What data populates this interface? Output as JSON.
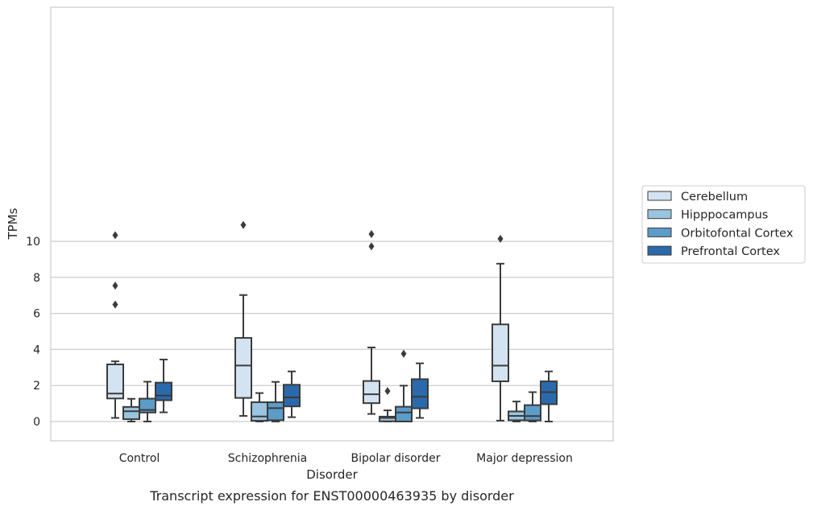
{
  "chart_data": {
    "type": "box",
    "title": "",
    "caption": "Transcript expression for ENST00000463935 by disorder",
    "xlabel": "Disorder",
    "ylabel": "TPMs",
    "ylim": [
      -0.5,
      11.5
    ],
    "yticks": [
      0,
      2,
      4,
      6,
      8,
      10
    ],
    "grid": "horizontal",
    "legend_position": "right",
    "categories": [
      "Control",
      "Schizophrenia",
      "Bipolar disorder",
      "Major depression"
    ],
    "series": [
      {
        "name": "Cerebellum",
        "color": "#d4e3f1",
        "boxes": [
          {
            "whisker_low": 0.2,
            "q1": 1.28,
            "median": 1.55,
            "q3": 3.17,
            "whisker_high": 3.34,
            "outliers": [
              6.49,
              7.54,
              10.34
            ]
          },
          {
            "whisker_low": 0.31,
            "q1": 1.31,
            "median": 3.11,
            "q3": 4.64,
            "whisker_high": 7.02,
            "outliers": [
              10.91
            ]
          },
          {
            "whisker_low": 0.42,
            "q1": 1.02,
            "median": 1.51,
            "q3": 2.25,
            "whisker_high": 4.11,
            "outliers": [
              9.72,
              10.4
            ]
          },
          {
            "whisker_low": 0.05,
            "q1": 2.23,
            "median": 3.1,
            "q3": 5.39,
            "whisker_high": 8.76,
            "outliers": [
              10.14
            ]
          }
        ]
      },
      {
        "name": "Hipppocampus",
        "color": "#9ac4df",
        "boxes": [
          {
            "whisker_low": 0.0,
            "q1": 0.13,
            "median": 0.57,
            "q3": 0.81,
            "whisker_high": 1.26,
            "outliers": []
          },
          {
            "whisker_low": 0.0,
            "q1": 0.04,
            "median": 0.28,
            "q3": 1.07,
            "whisker_high": 1.58,
            "outliers": []
          },
          {
            "whisker_low": 0.0,
            "q1": 0.01,
            "median": 0.2,
            "q3": 0.27,
            "whisker_high": 0.62,
            "outliers": [
              1.69
            ]
          },
          {
            "whisker_low": 0.0,
            "q1": 0.07,
            "median": 0.31,
            "q3": 0.56,
            "whisker_high": 1.11,
            "outliers": []
          }
        ]
      },
      {
        "name": "Orbitofontal Cortex",
        "color": "#5b9cc9",
        "boxes": [
          {
            "whisker_low": 0.0,
            "q1": 0.5,
            "median": 0.64,
            "q3": 1.27,
            "whisker_high": 2.21,
            "outliers": []
          },
          {
            "whisker_low": 0.0,
            "q1": 0.07,
            "median": 0.74,
            "q3": 1.07,
            "whisker_high": 2.2,
            "outliers": []
          },
          {
            "whisker_low": 0.0,
            "q1": 0.0,
            "median": 0.5,
            "q3": 0.82,
            "whisker_high": 1.99,
            "outliers": [
              3.76
            ]
          },
          {
            "whisker_low": 0.0,
            "q1": 0.06,
            "median": 0.3,
            "q3": 0.91,
            "whisker_high": 1.63,
            "outliers": []
          }
        ]
      },
      {
        "name": "Prefrontal Cortex",
        "color": "#2a6aac",
        "boxes": [
          {
            "whisker_low": 0.51,
            "q1": 1.18,
            "median": 1.44,
            "q3": 2.16,
            "whisker_high": 3.44,
            "outliers": []
          },
          {
            "whisker_low": 0.24,
            "q1": 0.84,
            "median": 1.34,
            "q3": 2.04,
            "whisker_high": 2.78,
            "outliers": []
          },
          {
            "whisker_low": 0.2,
            "q1": 0.73,
            "median": 1.37,
            "q3": 2.35,
            "whisker_high": 3.23,
            "outliers": []
          },
          {
            "whisker_low": 0.0,
            "q1": 0.96,
            "median": 1.63,
            "q3": 2.23,
            "whisker_high": 2.78,
            "outliers": []
          }
        ]
      }
    ]
  }
}
